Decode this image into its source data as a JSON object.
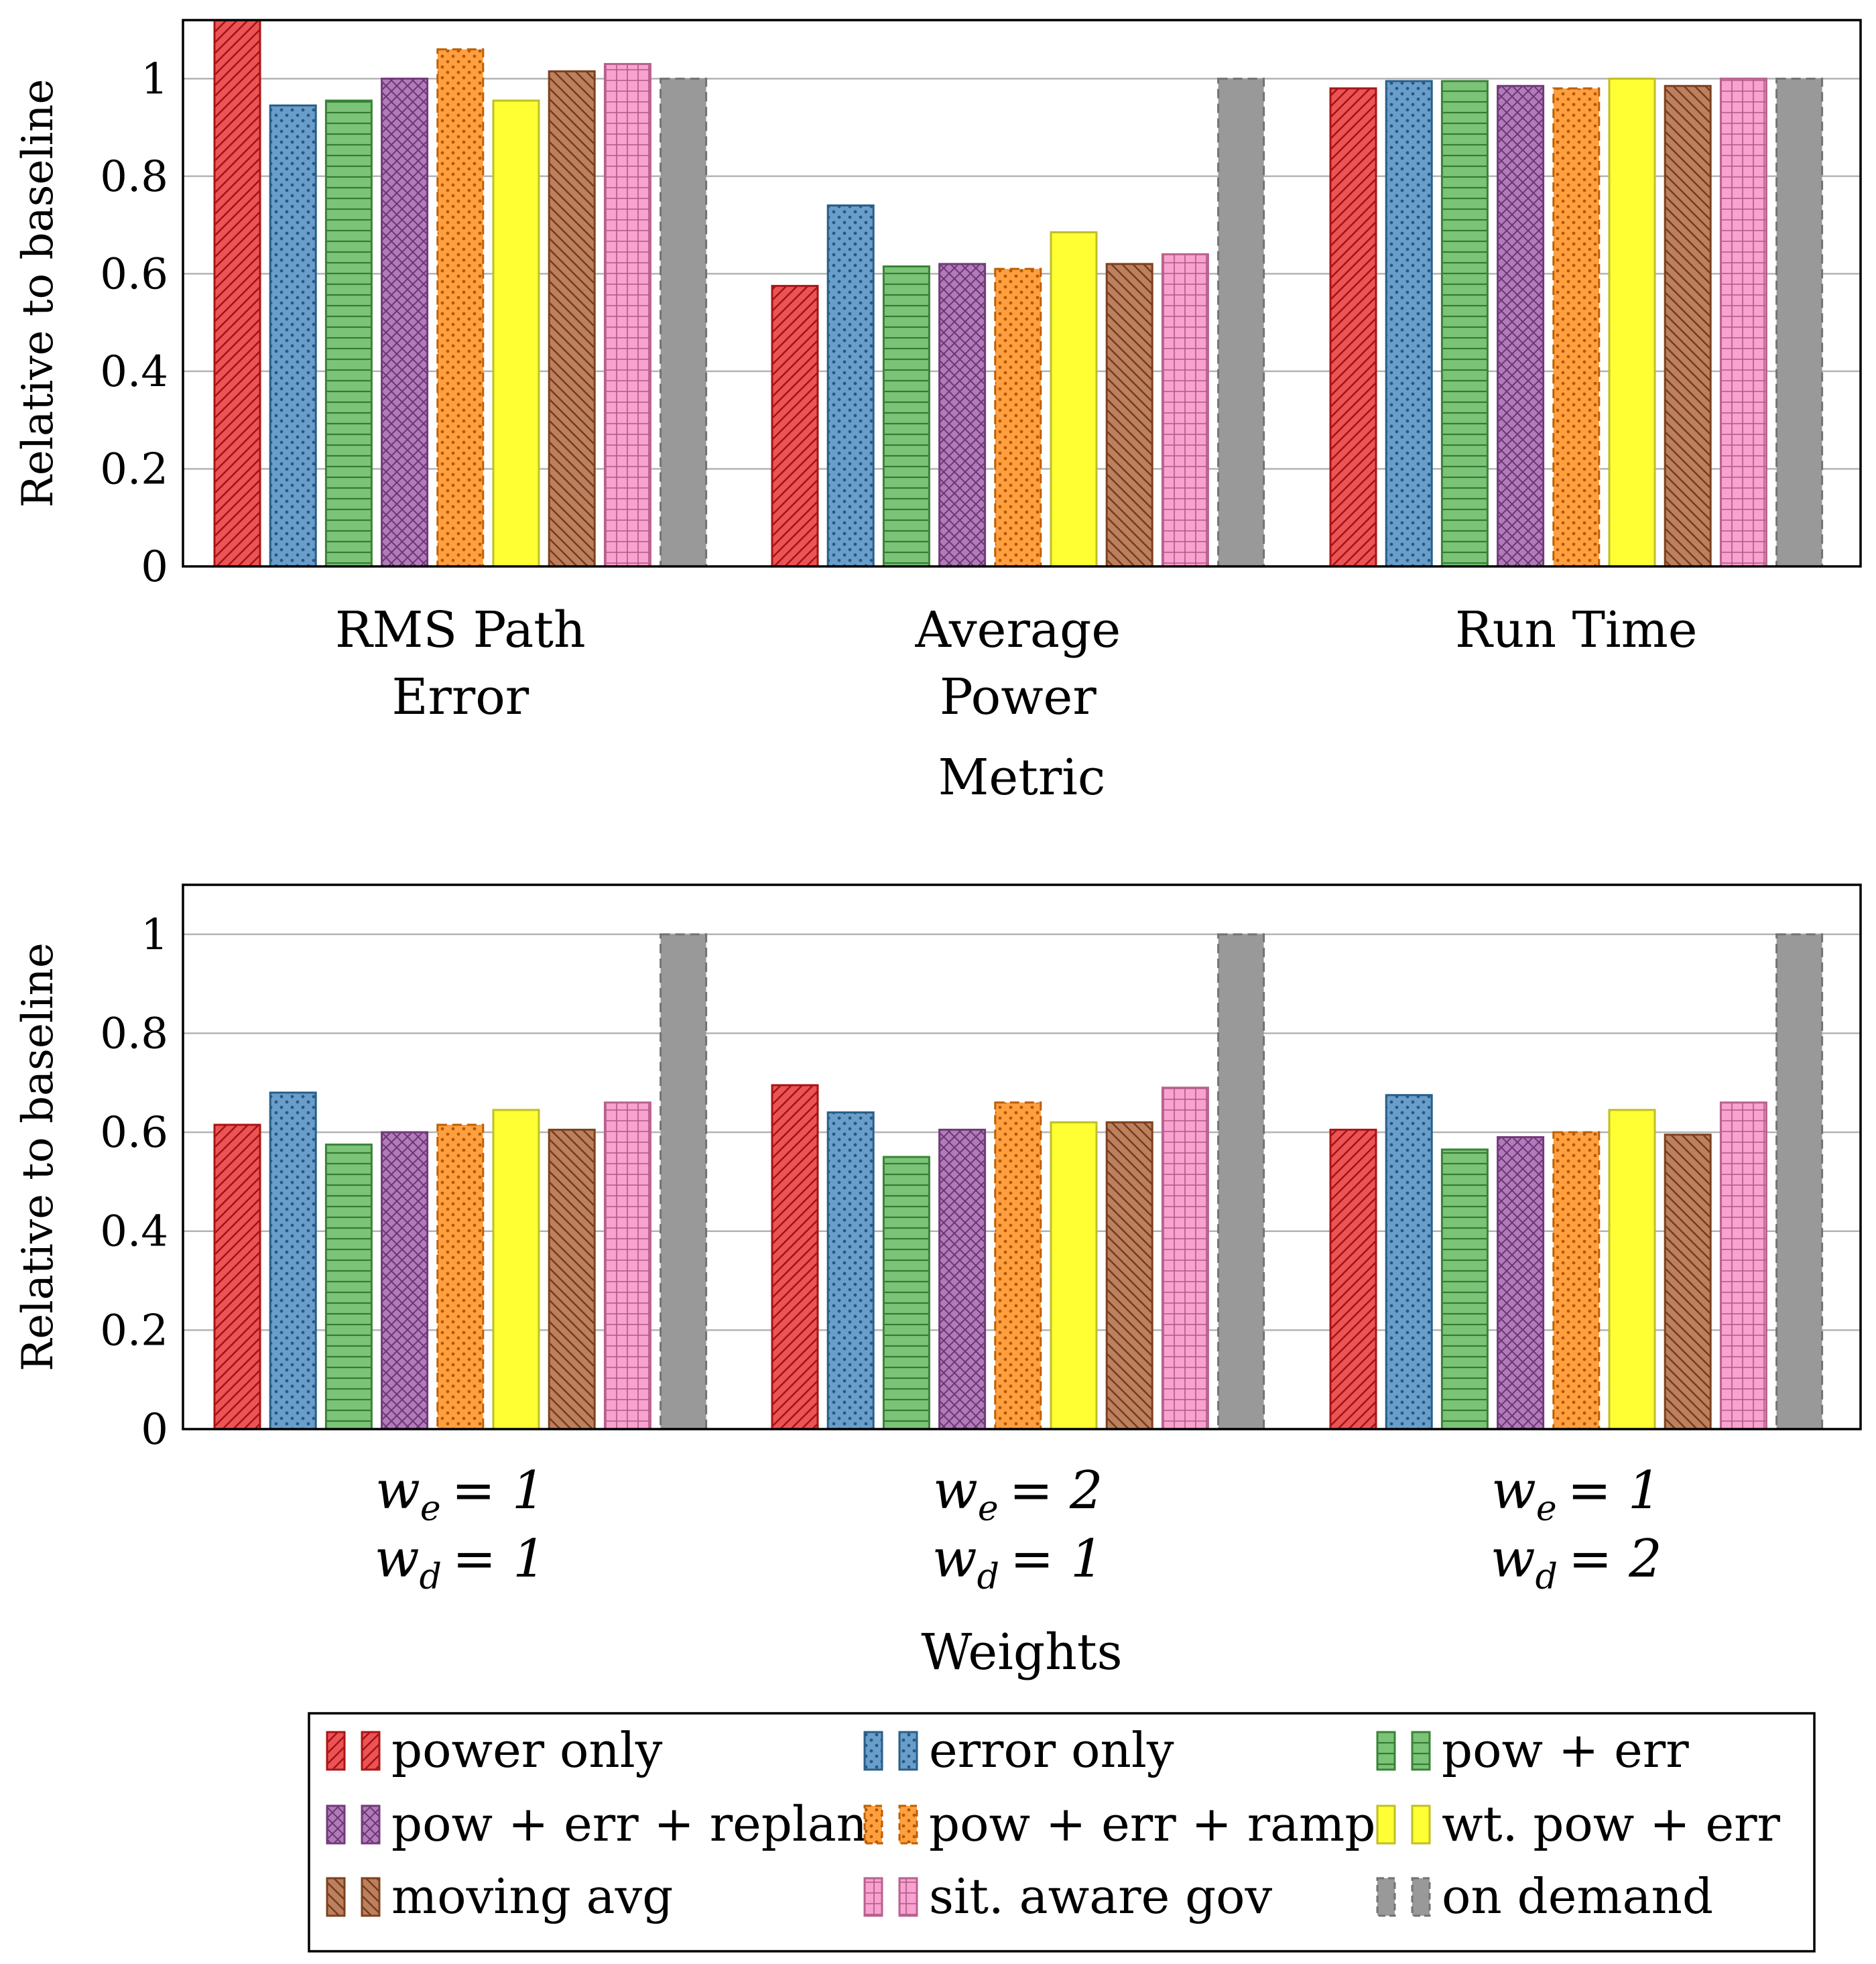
{
  "legend": {
    "items": [
      {
        "label": "power only",
        "color": "#e41a1c",
        "pattern": "diag-right"
      },
      {
        "label": "error only",
        "color": "#377eb8",
        "pattern": "dots"
      },
      {
        "label": "pow + err",
        "color": "#4daf4a",
        "pattern": "hlines"
      },
      {
        "label": "pow + err + replan",
        "color": "#984ea3",
        "pattern": "crosshatch"
      },
      {
        "label": "pow + err + ramp",
        "color": "#ff7f00",
        "pattern": "dots-dashed"
      },
      {
        "label": "wt. pow + err",
        "color": "#ffff33",
        "pattern": "solid"
      },
      {
        "label": "moving avg",
        "color": "#a65628",
        "pattern": "diag-left"
      },
      {
        "label": "sit. aware gov",
        "color": "#f781bf",
        "pattern": "grid"
      },
      {
        "label": "on demand",
        "color": "#999999",
        "pattern": "solid-dashed"
      }
    ]
  },
  "chart_data": [
    {
      "type": "bar",
      "xlabel": "Metric",
      "ylabel": "Relative to baseline",
      "ylim": [
        0,
        1.12
      ],
      "yticks": [
        "0",
        "0.2",
        "0.4",
        "0.6",
        "0.8",
        "1"
      ],
      "grid": "horizontal",
      "categories": [
        [
          "RMS Path",
          "Error"
        ],
        [
          "Average",
          "Power"
        ],
        [
          "Run Time"
        ]
      ],
      "series": [
        {
          "name": "power only",
          "values": [
            1.12,
            0.575,
            0.98
          ]
        },
        {
          "name": "error only",
          "values": [
            0.945,
            0.74,
            0.995
          ]
        },
        {
          "name": "pow + err",
          "values": [
            0.955,
            0.615,
            0.995
          ]
        },
        {
          "name": "pow + err + replan",
          "values": [
            1.0,
            0.62,
            0.985
          ]
        },
        {
          "name": "pow + err + ramp",
          "values": [
            1.06,
            0.61,
            0.98
          ]
        },
        {
          "name": "wt. pow + err",
          "values": [
            0.955,
            0.685,
            1.0
          ]
        },
        {
          "name": "moving avg",
          "values": [
            1.015,
            0.62,
            0.985
          ]
        },
        {
          "name": "sit. aware gov",
          "values": [
            1.03,
            0.64,
            1.0
          ]
        },
        {
          "name": "on demand",
          "values": [
            1.0,
            1.0,
            1.0
          ]
        }
      ]
    },
    {
      "type": "bar",
      "xlabel": "Weights",
      "ylabel": "Relative to baseline",
      "ylim": [
        0,
        1.1
      ],
      "yticks": [
        "0",
        "0.2",
        "0.4",
        "0.6",
        "0.8",
        "1"
      ],
      "grid": "horizontal",
      "categories": [
        [
          {
            "var": "w",
            "sub": "e",
            "val": "1"
          },
          {
            "var": "w",
            "sub": "d",
            "val": "1"
          }
        ],
        [
          {
            "var": "w",
            "sub": "e",
            "val": "2"
          },
          {
            "var": "w",
            "sub": "d",
            "val": "1"
          }
        ],
        [
          {
            "var": "w",
            "sub": "e",
            "val": "1"
          },
          {
            "var": "w",
            "sub": "d",
            "val": "2"
          }
        ]
      ],
      "series": [
        {
          "name": "power only",
          "values": [
            0.615,
            0.695,
            0.605
          ]
        },
        {
          "name": "error only",
          "values": [
            0.68,
            0.64,
            0.675
          ]
        },
        {
          "name": "pow + err",
          "values": [
            0.575,
            0.55,
            0.565
          ]
        },
        {
          "name": "pow + err + replan",
          "values": [
            0.6,
            0.605,
            0.59
          ]
        },
        {
          "name": "pow + err + ramp",
          "values": [
            0.615,
            0.66,
            0.6
          ]
        },
        {
          "name": "wt. pow + err",
          "values": [
            0.645,
            0.62,
            0.645
          ]
        },
        {
          "name": "moving avg",
          "values": [
            0.605,
            0.62,
            0.595
          ]
        },
        {
          "name": "sit. aware gov",
          "values": [
            0.66,
            0.69,
            0.66
          ]
        },
        {
          "name": "on demand",
          "values": [
            1.0,
            1.0,
            1.0
          ]
        }
      ]
    }
  ]
}
